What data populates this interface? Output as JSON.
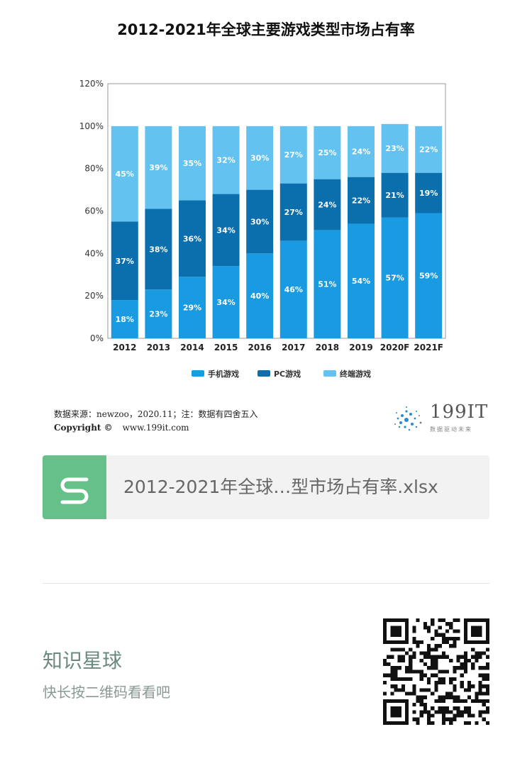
{
  "chart_data": {
    "type": "bar",
    "stacked": true,
    "title": "2012-2021年全球主要游戏类型市场占有率",
    "categories": [
      "2012",
      "2013",
      "2014",
      "2015",
      "2016",
      "2017",
      "2018",
      "2019",
      "2020F",
      "2021F"
    ],
    "series": [
      {
        "name": "手机游戏",
        "color": "#1a9ae0",
        "values": [
          18,
          23,
          29,
          34,
          40,
          46,
          51,
          54,
          57,
          59
        ]
      },
      {
        "name": "PC游戏",
        "color": "#0b6fad",
        "values": [
          37,
          38,
          36,
          34,
          30,
          27,
          24,
          22,
          21,
          19
        ]
      },
      {
        "name": "终端游戏",
        "color": "#63c2ef",
        "values": [
          45,
          39,
          35,
          32,
          30,
          27,
          25,
          24,
          23,
          22
        ]
      }
    ],
    "ylim": [
      0,
      120
    ],
    "yticks": [
      "0%",
      "20%",
      "40%",
      "60%",
      "80%",
      "100%",
      "120%"
    ],
    "ytick_values": [
      0,
      20,
      40,
      60,
      80,
      100,
      120
    ],
    "value_suffix": "%",
    "legend": "bottom",
    "grid": false
  },
  "footer": {
    "source": "数据来源：newzoo，2020.11；注：数据有四舍五入",
    "copyright_label": "Copyright ©",
    "copyright_url": "www.199it.com",
    "brand_name": "199IT",
    "brand_slogan": "数据驱动未来"
  },
  "file_card": {
    "icon": "spreadsheet-s-icon",
    "icon_color": "#66c08a",
    "filename": "2012-2021年全球…型市场占有率.xlsx"
  },
  "promo": {
    "title": "知识星球",
    "subtitle": "快长按二维码看看吧",
    "qr_icon": "qr-code-icon"
  }
}
